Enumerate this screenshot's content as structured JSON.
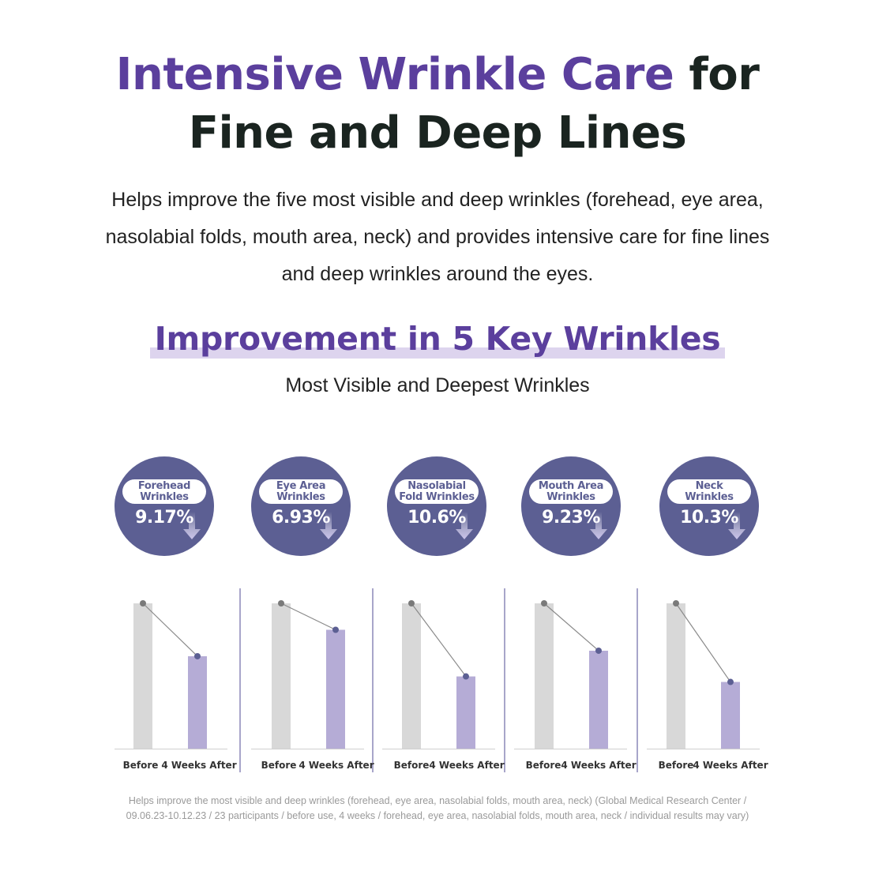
{
  "header": {
    "title_accent": "Intensive Wrinkle Care",
    "title_rest": "for",
    "title_line2": "Fine and Deep Lines",
    "intro": "Helps improve the five most visible and deep wrinkles (forehead, eye area, nasolabial folds, mouth area, neck) and provides intensive care for fine lines and deep wrinkles around the eyes."
  },
  "section": {
    "title": "Improvement in 5 Key Wrinkles",
    "caption": "Most Visible and Deepest Wrinkles"
  },
  "metrics": [
    {
      "label": "Forehead\nWrinkles",
      "value": "9.17%"
    },
    {
      "label": "Eye Area\nWrinkles",
      "value": "6.93%"
    },
    {
      "label": "Nasolabial\nFold Wrinkles",
      "value": "10.6%"
    },
    {
      "label": "Mouth Area\nWrinkles",
      "value": "9.23%"
    },
    {
      "label": "Neck\nWrinkles",
      "value": "10.3%"
    }
  ],
  "colors": {
    "accent": "#5b3f9d",
    "circle": "#5c5f93",
    "before_bar": "#d8d8d8",
    "after_bar": "#b5acd6",
    "divider": "#6e6aa6"
  },
  "chart_data": {
    "type": "bar",
    "categories": [
      "Before",
      "4 Weeks After"
    ],
    "series": [
      {
        "name": "Forehead Wrinkles",
        "values": [
          100,
          63.6
        ]
      },
      {
        "name": "Eye Area Wrinkles",
        "values": [
          100,
          81.8
        ]
      },
      {
        "name": "Nasolabial Fold Wrinkles",
        "values": [
          100,
          49.7
        ]
      },
      {
        "name": "Mouth Area Wrinkles",
        "values": [
          100,
          67.4
        ]
      },
      {
        "name": "Neck Wrinkles",
        "values": [
          100,
          45.9
        ]
      }
    ],
    "ylim": [
      0,
      100
    ],
    "grid": false,
    "legend": "none"
  },
  "footnote": "Helps improve the most visible and deep wrinkles (forehead, eye area, nasolabial folds, mouth area, neck) (Global Medical Research Center / 09.06.23-10.12.23 / 23 participants / before use, 4 weeks / forehead, eye area, nasolabial folds, mouth area, neck / individual results may vary)"
}
